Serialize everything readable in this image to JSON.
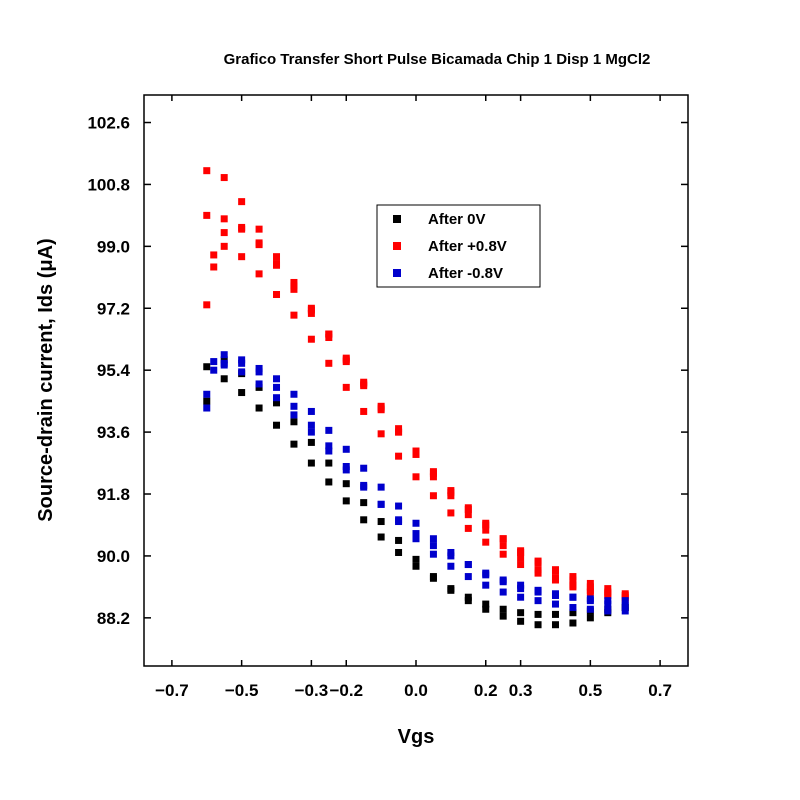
{
  "chart_data": {
    "type": "scatter",
    "title": "Grafico Transfer Short Pulse Bicamada Chip 1 Disp 1 MgCl2",
    "xlabel": "Vgs",
    "ylabel": "Source-drain current, Ids (μA)",
    "xlim": [
      -0.78,
      0.78
    ],
    "ylim": [
      86.8,
      103.4
    ],
    "xticks": [
      -0.7,
      -0.5,
      -0.3,
      -0.2,
      0.0,
      0.2,
      0.3,
      0.5,
      0.7
    ],
    "xtick_labels": [
      "−0.7",
      "−0.5",
      "−0.3",
      "−0.2",
      "0.0",
      "0.2",
      "0.3",
      "0.5",
      "0.7"
    ],
    "yticks": [
      88.2,
      90.0,
      91.8,
      93.6,
      95.4,
      97.2,
      99.0,
      100.8,
      102.6
    ],
    "ytick_labels": [
      "88.2",
      "90.0",
      "91.8",
      "93.6",
      "95.4",
      "97.2",
      "99.0",
      "100.8",
      "102.6"
    ],
    "grid": false,
    "legend_position": "upper-middle",
    "series": [
      {
        "name": "After 0V",
        "color": "#000000",
        "x": [
          -0.6,
          -0.55,
          -0.5,
          -0.45,
          -0.4,
          -0.35,
          -0.3,
          -0.25,
          -0.2,
          -0.15,
          -0.1,
          -0.05,
          0.0,
          0.05,
          0.1,
          0.15,
          0.2,
          0.25,
          0.3,
          0.35,
          0.4,
          0.45,
          0.5,
          0.55,
          0.6,
          0.6,
          0.55,
          0.5,
          0.45,
          0.4,
          0.35,
          0.3,
          0.25,
          0.2,
          0.15,
          0.1,
          0.05,
          0.0,
          -0.05,
          -0.1,
          -0.15,
          -0.2,
          -0.25,
          -0.3,
          -0.35,
          -0.4,
          -0.45,
          -0.5,
          -0.55,
          -0.6
        ],
        "y": [
          94.5,
          95.7,
          95.3,
          94.9,
          94.45,
          93.9,
          93.3,
          92.7,
          92.1,
          91.55,
          91.0,
          90.45,
          89.9,
          89.4,
          89.0,
          88.7,
          88.45,
          88.25,
          88.1,
          88.0,
          88.0,
          88.05,
          88.2,
          88.35,
          88.5,
          88.5,
          88.45,
          88.4,
          88.35,
          88.3,
          88.3,
          88.35,
          88.45,
          88.6,
          88.8,
          89.05,
          89.35,
          89.7,
          90.1,
          90.55,
          91.05,
          91.6,
          92.15,
          92.7,
          93.25,
          93.8,
          94.3,
          94.75,
          95.15,
          95.5
        ]
      },
      {
        "name": "After +0.8V",
        "color": "#ff0000",
        "x": [
          -0.6,
          -0.58,
          -0.55,
          -0.5,
          -0.45,
          -0.4,
          -0.35,
          -0.3,
          -0.25,
          -0.2,
          -0.15,
          -0.1,
          -0.05,
          0.0,
          0.05,
          0.1,
          0.15,
          0.2,
          0.25,
          0.3,
          0.35,
          0.4,
          0.45,
          0.5,
          0.55,
          0.6,
          0.6,
          0.55,
          0.5,
          0.45,
          0.4,
          0.35,
          0.3,
          0.25,
          0.2,
          0.15,
          0.1,
          0.05,
          0.0,
          -0.05,
          -0.1,
          -0.15,
          -0.2,
          -0.25,
          -0.3,
          -0.35,
          -0.4,
          -0.45,
          -0.5,
          -0.55,
          -0.6,
          -0.58,
          -0.55,
          -0.5,
          -0.45,
          -0.4,
          -0.35,
          -0.3,
          -0.25,
          -0.2,
          -0.15,
          -0.1,
          -0.05,
          0.0,
          0.05,
          0.1,
          0.15,
          0.2,
          0.25,
          0.3,
          0.35,
          0.4,
          0.45,
          0.5,
          0.55,
          0.6,
          -0.6,
          -0.55,
          -0.5,
          -0.45,
          -0.4,
          -0.35,
          -0.3,
          -0.25,
          -0.2,
          -0.15,
          -0.1,
          -0.05,
          0.0,
          0.05,
          0.1,
          0.15,
          0.2,
          0.25,
          0.3,
          0.35,
          0.4,
          0.45,
          0.5,
          0.55,
          0.6
        ],
        "y": [
          97.3,
          98.4,
          99.0,
          98.7,
          98.2,
          97.6,
          97.0,
          96.3,
          95.6,
          94.9,
          94.2,
          93.55,
          92.9,
          92.3,
          91.75,
          91.25,
          90.8,
          90.4,
          90.05,
          89.75,
          89.5,
          89.3,
          89.1,
          88.95,
          88.85,
          88.75,
          88.9,
          89.05,
          89.2,
          89.4,
          89.6,
          89.85,
          90.15,
          90.5,
          90.9,
          91.35,
          91.85,
          92.4,
          93.0,
          93.6,
          94.25,
          94.95,
          95.65,
          96.35,
          97.05,
          97.75,
          98.45,
          99.05,
          99.5,
          99.8,
          99.9,
          98.75,
          99.4,
          99.55,
          99.1,
          98.5,
          97.85,
          97.15,
          96.45,
          95.75,
          95.05,
          94.35,
          93.7,
          93.05,
          92.45,
          91.9,
          91.4,
          90.95,
          90.5,
          90.1,
          89.8,
          89.55,
          89.3,
          89.1,
          88.95,
          88.8,
          101.2,
          101.0,
          100.3,
          99.5,
          98.7,
          97.95,
          97.2,
          96.45,
          95.7,
          95.0,
          94.3,
          93.6,
          92.95,
          92.3,
          91.75,
          91.2,
          90.75,
          90.3,
          89.95,
          89.6,
          89.35,
          89.15,
          89.0,
          88.9,
          88.85
        ]
      },
      {
        "name": "After -0.8V",
        "color": "#0000cc",
        "x": [
          -0.6,
          -0.58,
          -0.55,
          -0.5,
          -0.45,
          -0.4,
          -0.35,
          -0.3,
          -0.25,
          -0.2,
          -0.15,
          -0.1,
          -0.05,
          0.0,
          0.05,
          0.1,
          0.15,
          0.2,
          0.25,
          0.3,
          0.35,
          0.4,
          0.45,
          0.5,
          0.55,
          0.6,
          0.6,
          0.55,
          0.5,
          0.45,
          0.4,
          0.35,
          0.3,
          0.25,
          0.2,
          0.15,
          0.1,
          0.05,
          0.0,
          -0.05,
          -0.1,
          -0.15,
          -0.2,
          -0.25,
          -0.3,
          -0.35,
          -0.4,
          -0.45,
          -0.5,
          -0.55,
          -0.58,
          -0.6,
          -0.55,
          -0.5,
          -0.45,
          -0.4,
          -0.35,
          -0.3,
          -0.25,
          -0.2,
          -0.15,
          -0.1,
          -0.05,
          0.0,
          0.05,
          0.1,
          0.15,
          0.2,
          0.25,
          0.3,
          0.35,
          0.4,
          0.45,
          0.5,
          0.55,
          0.6
        ],
        "y": [
          94.3,
          95.4,
          95.85,
          95.7,
          95.35,
          94.9,
          94.35,
          93.8,
          93.2,
          92.6,
          92.05,
          91.5,
          91.0,
          90.5,
          90.05,
          89.7,
          89.4,
          89.15,
          88.95,
          88.8,
          88.7,
          88.6,
          88.5,
          88.45,
          88.4,
          88.4,
          88.55,
          88.6,
          88.7,
          88.8,
          88.9,
          89.0,
          89.15,
          89.3,
          89.5,
          89.75,
          90.0,
          90.3,
          90.65,
          91.05,
          91.5,
          92.0,
          92.5,
          93.05,
          93.6,
          94.1,
          94.6,
          95.0,
          95.35,
          95.6,
          95.65,
          94.7,
          95.55,
          95.6,
          95.45,
          95.15,
          94.7,
          94.2,
          93.65,
          93.1,
          92.55,
          92.0,
          91.45,
          90.95,
          90.5,
          90.1,
          89.75,
          89.45,
          89.25,
          89.05,
          88.95,
          88.85,
          88.8,
          88.75,
          88.7,
          88.7
        ]
      }
    ]
  }
}
